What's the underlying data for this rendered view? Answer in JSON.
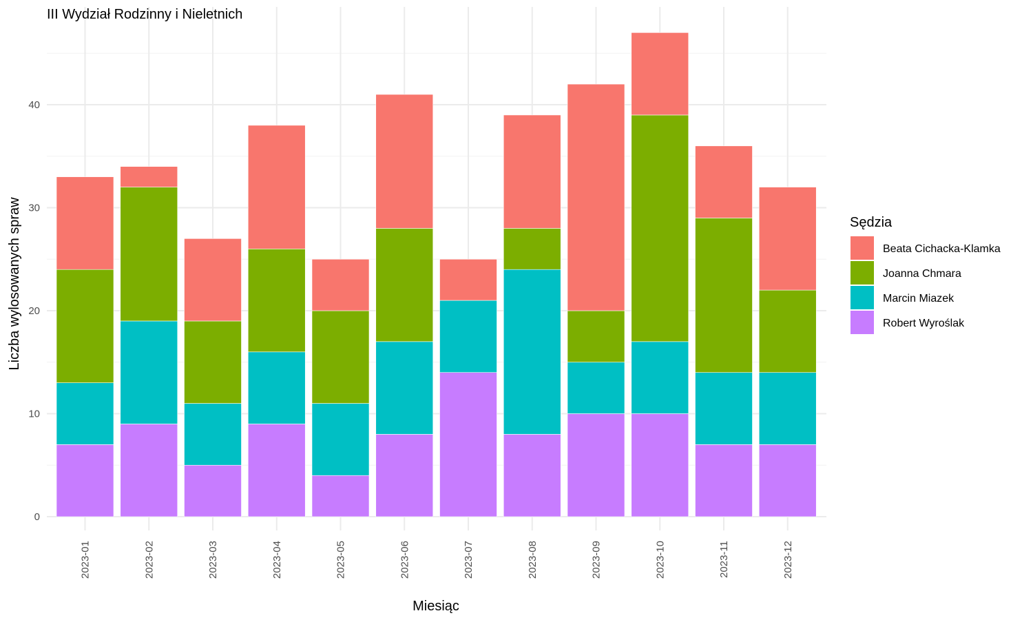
{
  "chart_data": {
    "type": "bar",
    "stacked": true,
    "title": "III Wydział Rodzinny i Nieletnich",
    "xlabel": "Miesiąc",
    "ylabel": "Liczba wylosowanych spraw",
    "ylim": [
      0,
      49
    ],
    "yticks": [
      0,
      10,
      20,
      30,
      40
    ],
    "grid": true,
    "legend_title": "Sędzia",
    "legend_position": "right",
    "categories": [
      "2023-01",
      "2023-02",
      "2023-03",
      "2023-04",
      "2023-05",
      "2023-06",
      "2023-07",
      "2023-08",
      "2023-09",
      "2023-10",
      "2023-11",
      "2023-12"
    ],
    "series": [
      {
        "name": "Beata Cichacka-Klamka",
        "color": "#F8766D",
        "values": [
          9,
          2,
          8,
          12,
          5,
          13,
          4,
          11,
          22,
          8,
          7,
          10
        ]
      },
      {
        "name": "Joanna Chmara",
        "color": "#7CAE00",
        "values": [
          11,
          13,
          8,
          10,
          9,
          11,
          0,
          4,
          5,
          22,
          15,
          8
        ]
      },
      {
        "name": "Marcin Miazek",
        "color": "#00BFC4",
        "values": [
          6,
          10,
          6,
          7,
          7,
          9,
          7,
          16,
          5,
          7,
          7,
          7
        ]
      },
      {
        "name": "Robert Wyroślak",
        "color": "#C77CFF",
        "values": [
          7,
          9,
          5,
          9,
          4,
          8,
          14,
          8,
          10,
          10,
          7,
          7
        ]
      }
    ],
    "stack_order_bottom_to_top": [
      "Robert Wyroślak",
      "Marcin Miazek",
      "Joanna Chmara",
      "Beata Cichacka-Klamka"
    ]
  }
}
